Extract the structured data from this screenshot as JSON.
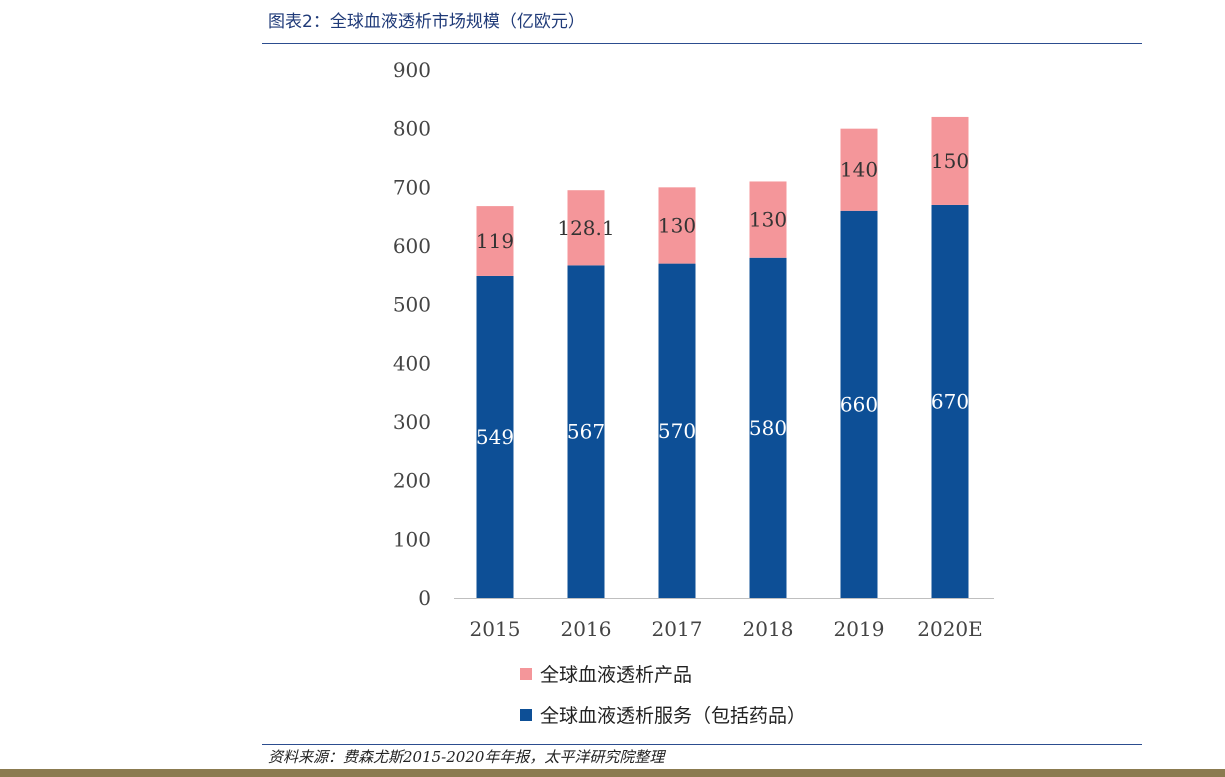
{
  "header": {
    "title": "图表2：全球血液透析市场规模（亿欧元）"
  },
  "footer": {
    "source": "资料来源：费森尤斯2015-2020年年报，太平洋研究院整理"
  },
  "colors": {
    "product": "#f4969a",
    "service": "#0d4f96",
    "rule": "#2c4d8f"
  },
  "chart_data": {
    "type": "bar",
    "stacked": true,
    "categories": [
      "2015",
      "2016",
      "2017",
      "2018",
      "2019",
      "2020E"
    ],
    "series": [
      {
        "name": "全球血液透析服务（包括药品）",
        "values": [
          549,
          567,
          570,
          580,
          660,
          670
        ],
        "labels": [
          "549",
          "567",
          "570",
          "580",
          "660",
          "670"
        ]
      },
      {
        "name": "全球血液透析产品",
        "values": [
          119,
          128.1,
          130,
          130,
          140,
          150
        ],
        "labels": [
          "119",
          "128.1",
          "130",
          "130",
          "140",
          "150"
        ]
      }
    ],
    "ylim": [
      0,
      900
    ],
    "yticks": [
      "0",
      "100",
      "200",
      "300",
      "400",
      "500",
      "600",
      "700",
      "800",
      "900"
    ],
    "legend_position": "bottom",
    "grid": false
  }
}
